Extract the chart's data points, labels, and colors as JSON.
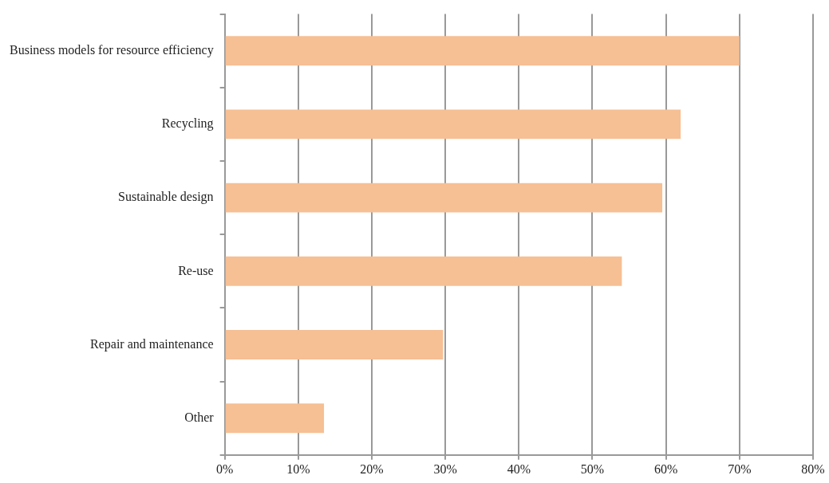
{
  "chart_data": {
    "type": "bar",
    "orientation": "horizontal",
    "categories": [
      "Business models for resource efficiency",
      "Recycling",
      "Sustainable design",
      "Re-use",
      "Repair and maintenance",
      "Other"
    ],
    "values": [
      70,
      62,
      59.5,
      54,
      29.7,
      13.5
    ],
    "color": "#f6bf94",
    "xlim": [
      0,
      80
    ],
    "xticks": [
      {
        "value": 0,
        "label": "0%"
      },
      {
        "value": 10,
        "label": "10%"
      },
      {
        "value": 20,
        "label": "20%"
      },
      {
        "value": 30,
        "label": "30%"
      },
      {
        "value": 40,
        "label": "40%"
      },
      {
        "value": 50,
        "label": "50%"
      },
      {
        "value": 60,
        "label": "60%"
      },
      {
        "value": 70,
        "label": "70%"
      },
      {
        "value": 80,
        "label": "80%"
      }
    ],
    "grid": "x",
    "legend": false
  }
}
